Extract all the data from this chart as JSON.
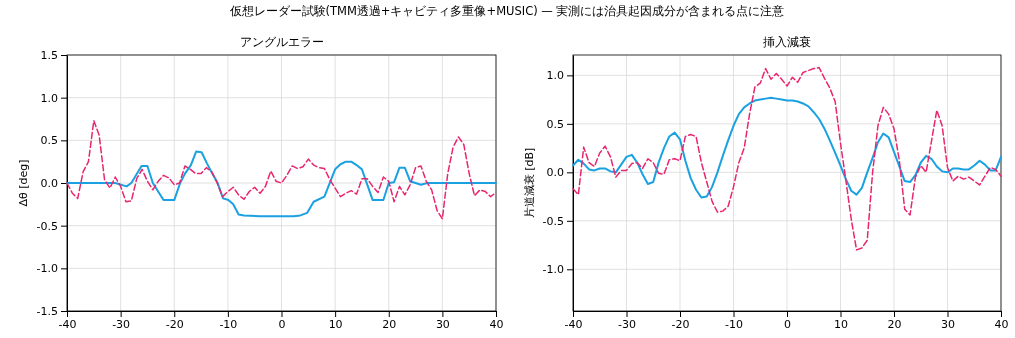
{
  "chart_data": [
    {
      "type": "line",
      "title": "アングルエラー",
      "ylabel": "Δθ [deg]",
      "xlim": [
        -40,
        40
      ],
      "xticks": [
        -40,
        -30,
        -20,
        -10,
        0,
        10,
        20,
        30,
        40
      ],
      "ylim": [
        -1.5,
        1.5
      ],
      "yticks": [
        -1.5,
        {
          "value": -1,
          "label": "-1.0"
        },
        -0.5,
        {
          "value": 0,
          "label": "0.0"
        },
        0.5,
        {
          "value": 1,
          "label": "1.0"
        },
        1.5
      ],
      "grid": true,
      "annotations": [
        "仮想レーダー試験(TMM透過+キャビティ多重像+MUSIC) — 実測には治具起因成分が含まれる点に注意"
      ],
      "series": [
        {
          "color": "#1ba1e2",
          "line_style": "solid",
          "x": [
            -40,
            -31,
            -28.9,
            -28,
            -26.1,
            -25,
            -24,
            -22,
            -20,
            -18.9,
            -18,
            -16.9,
            -15.9,
            -14.9,
            -13.9,
            -12.9,
            -11.9,
            -10.9,
            -9.9,
            -9,
            -8,
            -7,
            -4,
            2.3,
            3.5,
            4.8,
            6,
            8,
            10,
            11,
            12,
            13,
            14,
            15,
            17,
            19,
            20,
            21,
            22,
            23,
            24,
            26,
            27.2,
            40
          ],
          "values": [
            0,
            0,
            -0.04,
            0,
            0.2,
            0.2,
            0,
            -0.2,
            -0.2,
            0,
            0.11,
            0.21,
            0.37,
            0.36,
            0.23,
            0.11,
            0,
            -0.18,
            -0.2,
            -0.25,
            -0.37,
            -0.38,
            -0.39,
            -0.39,
            -0.38,
            -0.35,
            -0.22,
            -0.16,
            0.16,
            0.22,
            0.25,
            0.25,
            0.21,
            0.16,
            -0.2,
            -0.2,
            0,
            0.01,
            0.18,
            0.18,
            0.02,
            -0.02,
            0,
            0
          ]
        },
        {
          "color": "#e8256f",
          "line_style": "dashed",
          "x": [
            -40,
            -39,
            -38,
            -37,
            -36,
            -35,
            -34,
            -33,
            -32,
            -31,
            -30,
            -29,
            -28,
            -27,
            -26,
            -25,
            -24,
            -23,
            -22,
            -21,
            -20,
            -19,
            -18,
            -17,
            -16,
            -15,
            -14,
            -13,
            -12,
            -11,
            -10,
            -9,
            -8,
            -7,
            -6,
            -5,
            -4,
            -3,
            -2,
            -1,
            0,
            1,
            2,
            3,
            4,
            5,
            6,
            7,
            8,
            9,
            10,
            11,
            12,
            13,
            14,
            15,
            16,
            17,
            18,
            19,
            20,
            21,
            22,
            23,
            24,
            25,
            26,
            27,
            28,
            29,
            30,
            31,
            32,
            33,
            34,
            35,
            36,
            37,
            38,
            39,
            40
          ],
          "values": [
            0,
            -0.12,
            -0.18,
            0.13,
            0.25,
            0.73,
            0.56,
            0.04,
            -0.06,
            0.07,
            -0.04,
            -0.22,
            -0.21,
            0.05,
            0.16,
            0.02,
            -0.08,
            0.02,
            0.09,
            0.06,
            -0.02,
            0,
            0.2,
            0.16,
            0.11,
            0.11,
            0.18,
            0.13,
            0,
            -0.16,
            -0.1,
            -0.05,
            -0.14,
            -0.19,
            -0.1,
            -0.05,
            -0.12,
            -0.04,
            0.14,
            0.02,
            0,
            0.09,
            0.2,
            0.17,
            0.19,
            0.28,
            0.21,
            0.18,
            0.17,
            0.04,
            -0.06,
            -0.16,
            -0.12,
            -0.09,
            -0.13,
            0.05,
            0.05,
            -0.04,
            -0.11,
            0.07,
            0.02,
            -0.22,
            -0.04,
            -0.14,
            -0.02,
            0.18,
            0.2,
            0.02,
            -0.08,
            -0.32,
            -0.42,
            0.11,
            0.42,
            0.54,
            0.45,
            0.11,
            -0.15,
            -0.08,
            -0.1,
            -0.16,
            -0.11
          ]
        }
      ]
    },
    {
      "type": "line",
      "title": "挿入減衰",
      "ylabel": "片道減衰 [dB]",
      "xlim": [
        -40,
        40
      ],
      "xticks": [
        -40,
        -30,
        -20,
        -10,
        0,
        10,
        20,
        30,
        40
      ],
      "ylim": [
        -1.43,
        1.21
      ],
      "yticks": [
        {
          "value": -1,
          "label": "-1.0"
        },
        -0.5,
        {
          "value": 0,
          "label": "0.0"
        },
        0.5,
        {
          "value": 1,
          "label": "1.0"
        }
      ],
      "grid": true,
      "series": [
        {
          "color": "#1ba1e2",
          "line_style": "solid",
          "x": [
            -40,
            -39,
            -38,
            -37,
            -36,
            -35,
            -34,
            -33,
            -32,
            -31,
            -30,
            -29,
            -28,
            -27,
            -26,
            -25,
            -24,
            -23,
            -22,
            -21,
            -20,
            -19,
            -18,
            -17,
            -16,
            -15,
            -14,
            -13,
            -12,
            -11,
            -10,
            -9,
            -8,
            -7,
            -6,
            -5,
            -4,
            -3,
            -2,
            -1,
            0,
            1,
            2,
            3,
            4,
            5,
            6,
            7,
            8,
            9,
            10,
            11,
            12,
            13,
            14,
            15,
            16,
            17,
            18,
            19,
            20,
            21,
            22,
            23,
            24,
            25,
            26,
            27,
            28,
            29,
            30,
            31,
            32,
            33,
            34,
            35,
            36,
            37,
            38,
            39,
            40
          ],
          "values": [
            0.07,
            0.13,
            0.09,
            0.03,
            0.02,
            0.04,
            0.04,
            0.01,
            0,
            0.08,
            0.16,
            0.18,
            0.1,
            -0.02,
            -0.12,
            -0.1,
            0.1,
            0.25,
            0.37,
            0.41,
            0.34,
            0.12,
            -0.06,
            -0.18,
            -0.26,
            -0.25,
            -0.15,
            0,
            0.17,
            0.33,
            0.48,
            0.6,
            0.67,
            0.71,
            0.74,
            0.75,
            0.76,
            0.77,
            0.76,
            0.75,
            0.74,
            0.74,
            0.73,
            0.71,
            0.68,
            0.62,
            0.55,
            0.45,
            0.33,
            0.2,
            0.07,
            -0.07,
            -0.19,
            -0.23,
            -0.16,
            0,
            0.15,
            0.31,
            0.4,
            0.36,
            0.21,
            0.06,
            -0.09,
            -0.1,
            -0.03,
            0.1,
            0.17,
            0.14,
            0.06,
            0.01,
            0,
            0.04,
            0.04,
            0.03,
            0.03,
            0.07,
            0.12,
            0.08,
            0.02,
            0.02,
            0.16
          ]
        },
        {
          "color": "#e8256f",
          "line_style": "dashed",
          "x": [
            -40,
            -39,
            -38,
            -37,
            -36,
            -35,
            -34,
            -33,
            -32,
            -31,
            -30,
            -29,
            -28,
            -27,
            -26,
            -25,
            -24,
            -23,
            -22,
            -21,
            -20,
            -19,
            -18,
            -17,
            -16,
            -15,
            -14,
            -13,
            -12,
            -11,
            -10,
            -9,
            -8,
            -7,
            -6,
            -5,
            -4,
            -3,
            -2,
            -1,
            0,
            1,
            2,
            3,
            4,
            5,
            6,
            7,
            8,
            9,
            10,
            11,
            12,
            13,
            14,
            15,
            16,
            17,
            18,
            19,
            20,
            21,
            22,
            23,
            24,
            25,
            26,
            27,
            28,
            29,
            30,
            31,
            32,
            33,
            34,
            35,
            36,
            37,
            38,
            39,
            40
          ],
          "values": [
            -0.17,
            -0.23,
            0.26,
            0.1,
            0.06,
            0.2,
            0.27,
            0.16,
            -0.05,
            0.02,
            0.02,
            0.09,
            0.1,
            0.04,
            0.14,
            0.1,
            -0.01,
            -0.02,
            0.13,
            0.14,
            0.12,
            0.37,
            0.39,
            0.37,
            0.1,
            -0.1,
            -0.3,
            -0.41,
            -0.4,
            -0.35,
            -0.15,
            0.1,
            0.25,
            0.6,
            0.88,
            0.92,
            1.07,
            0.96,
            1.02,
            0.96,
            0.89,
            0.98,
            0.93,
            1.03,
            1.05,
            1.07,
            1.08,
            0.97,
            0.87,
            0.73,
            0.3,
            -0.08,
            -0.48,
            -0.8,
            -0.78,
            -0.7,
            0,
            0.48,
            0.67,
            0.6,
            0.45,
            0.12,
            -0.38,
            -0.44,
            -0.05,
            0.07,
            0,
            0.32,
            0.64,
            0.48,
            0.05,
            -0.09,
            -0.04,
            -0.07,
            -0.05,
            -0.09,
            -0.13,
            -0.04,
            0.05,
            0.03,
            -0.04
          ]
        }
      ]
    }
  ]
}
